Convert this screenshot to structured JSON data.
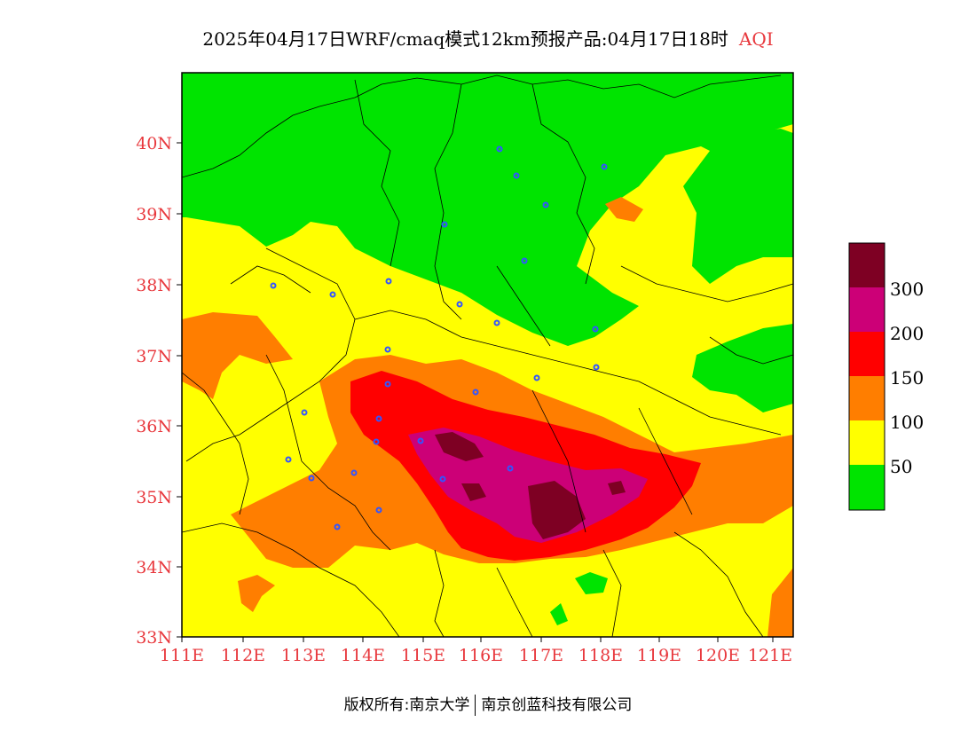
{
  "title": {
    "main": "2025年04月17日WRF/cmaq模式12km预报产品:04月17日18时",
    "variable": "AQI"
  },
  "map": {
    "lon_ticks": [
      "111E",
      "112E",
      "113E",
      "114E",
      "115E",
      "116E",
      "117E",
      "118E",
      "119E",
      "120E",
      "121E"
    ],
    "lat_ticks": [
      "40N",
      "39N",
      "38N",
      "37N",
      "36N",
      "35N",
      "34N",
      "33N"
    ],
    "colors": {
      "good": "#00e400",
      "moderate": "#ffff00",
      "usg": "#ff7e00",
      "unhealthy": "#ff0000",
      "very_unhealthy": "#cc0077",
      "hazardous": "#7e0023",
      "tick": "#e8383d",
      "station": "#3355ff"
    }
  },
  "legend": {
    "labels": [
      "300",
      "200",
      "150",
      "100",
      "50"
    ],
    "colors": [
      "#7e0023",
      "#cc0077",
      "#ff0000",
      "#ff7e00",
      "#ffff00",
      "#00e400"
    ]
  },
  "footer": {
    "left": "版权所有:南京大学",
    "right": "南京创蓝科技有限公司"
  }
}
